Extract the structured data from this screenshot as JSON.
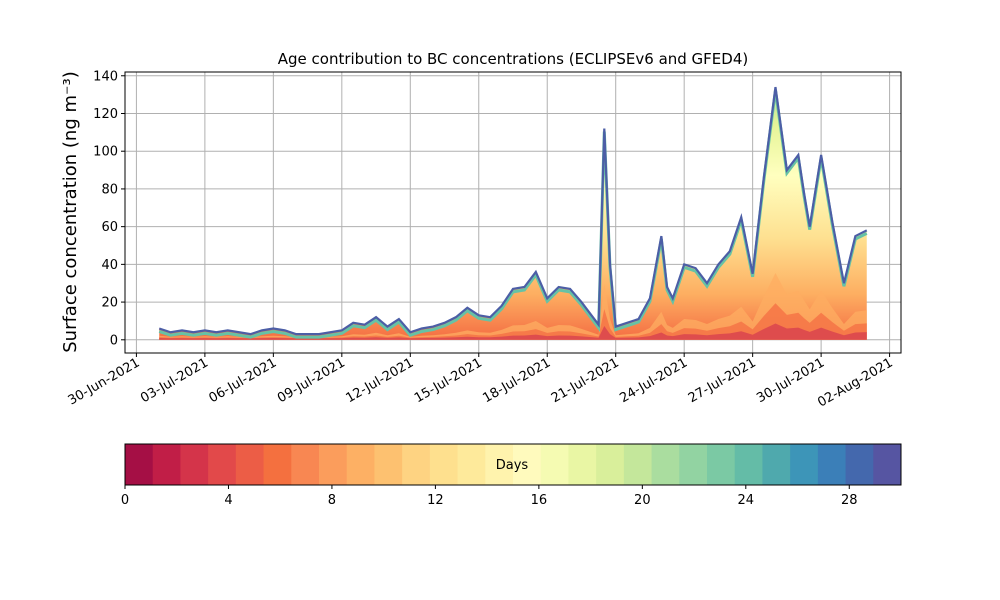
{
  "chart_data": {
    "type": "area",
    "title": "Age contribution to BC concentrations (ECLIPSEv6 and GFED4)",
    "ylabel": "Surface concentration (ng m⁻³)",
    "xlabel": "",
    "ylim": [
      -7,
      142
    ],
    "yticks": [
      0,
      20,
      40,
      60,
      80,
      100,
      120,
      140
    ],
    "xlim": [
      "2021-06-29T12:00",
      "2021-08-02T12:00"
    ],
    "xticks": [
      "30-Jun-2021",
      "03-Jul-2021",
      "06-Jul-2021",
      "09-Jul-2021",
      "12-Jul-2021",
      "15-Jul-2021",
      "18-Jul-2021",
      "21-Jul-2021",
      "24-Jul-2021",
      "27-Jul-2021",
      "30-Jul-2021",
      "02-Aug-2021"
    ],
    "grid": true,
    "x": [
      "2021-07-01T00:00",
      "2021-07-01T12:00",
      "2021-07-02T00:00",
      "2021-07-02T12:00",
      "2021-07-03T00:00",
      "2021-07-03T12:00",
      "2021-07-04T00:00",
      "2021-07-04T12:00",
      "2021-07-05T00:00",
      "2021-07-05T12:00",
      "2021-07-06T00:00",
      "2021-07-06T12:00",
      "2021-07-07T00:00",
      "2021-07-07T12:00",
      "2021-07-08T00:00",
      "2021-07-08T12:00",
      "2021-07-09T00:00",
      "2021-07-09T12:00",
      "2021-07-10T00:00",
      "2021-07-10T12:00",
      "2021-07-11T00:00",
      "2021-07-11T12:00",
      "2021-07-12T00:00",
      "2021-07-12T12:00",
      "2021-07-13T00:00",
      "2021-07-13T12:00",
      "2021-07-14T00:00",
      "2021-07-14T12:00",
      "2021-07-15T00:00",
      "2021-07-15T12:00",
      "2021-07-16T00:00",
      "2021-07-16T12:00",
      "2021-07-17T00:00",
      "2021-07-17T12:00",
      "2021-07-18T00:00",
      "2021-07-18T12:00",
      "2021-07-19T00:00",
      "2021-07-19T12:00",
      "2021-07-20T00:00",
      "2021-07-20T06:00",
      "2021-07-20T12:00",
      "2021-07-20T18:00",
      "2021-07-21T00:00",
      "2021-07-21T12:00",
      "2021-07-22T00:00",
      "2021-07-22T12:00",
      "2021-07-23T00:00",
      "2021-07-23T06:00",
      "2021-07-23T12:00",
      "2021-07-24T00:00",
      "2021-07-24T12:00",
      "2021-07-25T00:00",
      "2021-07-25T12:00",
      "2021-07-26T00:00",
      "2021-07-26T12:00",
      "2021-07-27T00:00",
      "2021-07-27T12:00",
      "2021-07-28T00:00",
      "2021-07-28T12:00",
      "2021-07-29T00:00",
      "2021-07-29T06:00",
      "2021-07-29T12:00",
      "2021-07-30T00:00",
      "2021-07-30T12:00",
      "2021-07-31T00:00",
      "2021-07-31T12:00",
      "2021-08-01T00:00"
    ],
    "total": [
      6,
      4,
      5,
      4,
      5,
      4,
      5,
      4,
      3,
      5,
      6,
      5,
      3,
      3,
      3,
      4,
      5,
      9,
      8,
      12,
      7,
      11,
      4,
      6,
      7,
      9,
      12,
      17,
      13,
      12,
      18,
      27,
      28,
      36,
      22,
      28,
      27,
      20,
      12,
      8,
      112,
      40,
      7,
      9,
      11,
      22,
      55,
      28,
      22,
      40,
      38,
      30,
      40,
      47,
      65,
      35,
      87,
      134,
      90,
      98,
      78,
      60,
      98,
      62,
      30,
      55,
      58
    ],
    "series_note": "",
    "colorbar": {
      "label": "Days",
      "min": 0,
      "max": 30,
      "ticks": [
        0,
        4,
        8,
        12,
        16,
        20,
        24,
        28
      ],
      "colors": [
        "#a50f45",
        "#c11e47",
        "#d4344a",
        "#e2494a",
        "#ec5d46",
        "#f4703f",
        "#f88752",
        "#fb9d5c",
        "#fdb064",
        "#fdc170",
        "#fed382",
        "#fee08e",
        "#feea9b",
        "#fff3ad",
        "#fffabd",
        "#f5fbb2",
        "#e9f6a4",
        "#d9ef9b",
        "#c4e79b",
        "#aadd9f",
        "#92d3a2",
        "#7bc9a4",
        "#64bca7",
        "#4fa9ad",
        "#3d95b8",
        "#3b7fb8",
        "#4468ad",
        "#5655a2"
      ]
    }
  }
}
